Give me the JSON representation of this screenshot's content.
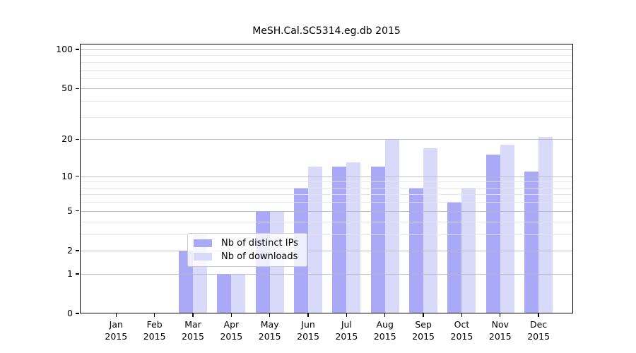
{
  "chart_data": {
    "type": "bar",
    "title": "MeSH.Cal.SC5314.eg.db 2015",
    "categories": [
      "Jan",
      "Feb",
      "Mar",
      "Apr",
      "May",
      "Jun",
      "Jul",
      "Aug",
      "Sep",
      "Oct",
      "Nov",
      "Dec"
    ],
    "x_tick_year": "2015",
    "series": [
      {
        "name": "Nb of distinct IPs",
        "color": "#a9a9f7",
        "values": [
          0,
          0,
          2,
          1,
          5,
          8,
          12,
          12,
          8,
          6,
          15,
          11
        ]
      },
      {
        "name": "Nb of downloads",
        "color": "#d9d9fa",
        "values": [
          0,
          0,
          3,
          1,
          5,
          12,
          13,
          20,
          17,
          8,
          18,
          21
        ]
      }
    ],
    "yscale": "log1p",
    "ylim": [
      0,
      100
    ],
    "yticks_major": [
      0,
      1,
      2,
      5,
      10,
      20,
      50,
      100
    ],
    "yticks_minor": [
      3,
      4,
      6,
      7,
      8,
      9,
      30,
      40,
      60,
      70,
      80,
      90
    ],
    "grid": "horizontal",
    "legend_position": "bottom-center"
  },
  "colors": {
    "grid_major": "#b5b5ba",
    "grid_minor": "#e4e4e9",
    "axis": "#000000",
    "background": "#ffffff"
  }
}
